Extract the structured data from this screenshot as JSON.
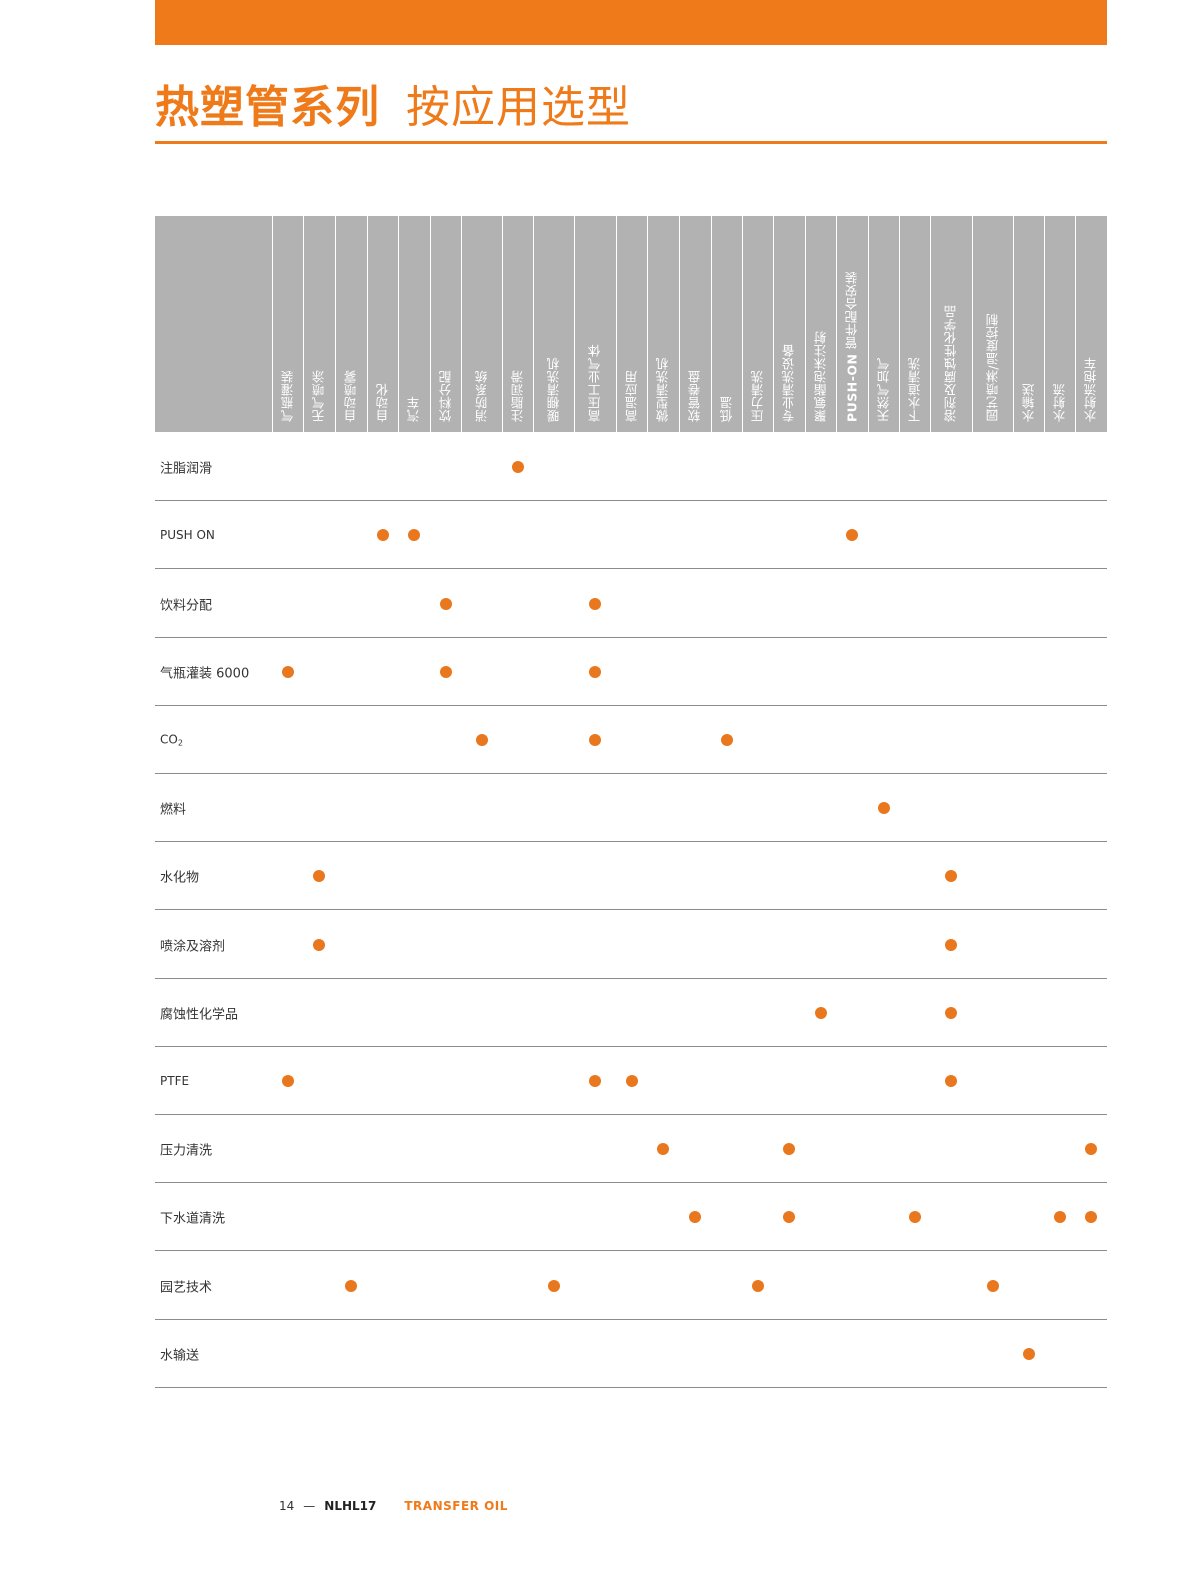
{
  "header": {
    "title_main": "热塑管系列",
    "title_sub": "按应用选型"
  },
  "table": {
    "columns": [
      {
        "label": "气瓶灌装"
      },
      {
        "label": "无气喷涂"
      },
      {
        "label": "自动喷雾"
      },
      {
        "label": "自动化"
      },
      {
        "label": "汽车"
      },
      {
        "label": "饮料分配"
      },
      {
        "label": "消防系统"
      },
      {
        "label": "注脂润滑"
      },
      {
        "label": "暖棚清洗机"
      },
      {
        "label": "高压工业气体"
      },
      {
        "label": "高温应用"
      },
      {
        "label": "微型清洗机"
      },
      {
        "label": "软管卷盘"
      },
      {
        "label": "低温"
      },
      {
        "label": "压力清洗"
      },
      {
        "label": "专业清洗设备"
      },
      {
        "label": "聚氨酯泡沫注射"
      },
      {
        "label": "PUSH-ON 管件配合安装",
        "bold_prefix": "PUSH-ON",
        "rest": " 管件配合安装"
      },
      {
        "label": "天然气加气"
      },
      {
        "label": "下水道清洗"
      },
      {
        "label": "溶剂及腐蚀性化学品"
      },
      {
        "label": "园艺喷淋/温度控制"
      },
      {
        "label": "水输送"
      },
      {
        "label": "水射流"
      },
      {
        "label": "水射流抱车"
      }
    ],
    "rows": [
      {
        "label": "注脂润滑",
        "marks": [
          7
        ]
      },
      {
        "label": "PUSH ON",
        "marks": [
          3,
          4,
          17
        ]
      },
      {
        "label": "饮料分配",
        "marks": [
          5,
          9
        ]
      },
      {
        "label": "气瓶灌装 6000",
        "marks": [
          0,
          5,
          9
        ]
      },
      {
        "label": "CO",
        "label_sub": "2",
        "marks": [
          6,
          9,
          13
        ]
      },
      {
        "label": "燃料",
        "marks": [
          18
        ]
      },
      {
        "label": "水化物",
        "marks": [
          1,
          20
        ]
      },
      {
        "label": "喷涂及溶剂",
        "marks": [
          1,
          20
        ]
      },
      {
        "label": "腐蚀性化学品",
        "marks": [
          16,
          20
        ]
      },
      {
        "label": "PTFE",
        "marks": [
          0,
          9,
          10,
          20
        ]
      },
      {
        "label": "压力清洗",
        "marks": [
          11,
          15,
          24
        ]
      },
      {
        "label": "下水道清洗",
        "marks": [
          12,
          15,
          19,
          23,
          24
        ]
      },
      {
        "label": "园艺技术",
        "marks": [
          2,
          8,
          14,
          21
        ]
      },
      {
        "label": "水输送",
        "marks": [
          22
        ]
      }
    ]
  },
  "footer": {
    "page_number": "14",
    "dash": "—",
    "doc_code": "NLHL17",
    "product": "TRANSFER OIL"
  },
  "colors": {
    "accent": "#ef7a1a",
    "header_gray": "#b2b2b2",
    "dot": "#e8771e"
  }
}
